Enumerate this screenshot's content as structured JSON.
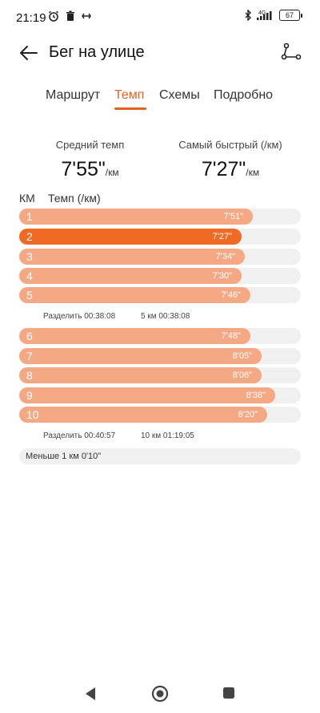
{
  "status_bar": {
    "time": "21:19",
    "left_icons": [
      "alarm-icon",
      "trash-icon",
      "link-icon"
    ],
    "network": "4G",
    "battery": "67"
  },
  "header": {
    "title": "Бег на улице"
  },
  "tabs": [
    {
      "label": "Маршрут",
      "active": false
    },
    {
      "label": "Темп",
      "active": true
    },
    {
      "label": "Схемы",
      "active": false
    },
    {
      "label": "Подробно",
      "active": false
    }
  ],
  "stats": {
    "avg": {
      "label": "Средний темп",
      "value": "7'55\"",
      "unit": "/км"
    },
    "best": {
      "label": "Самый быстрый (/км)",
      "value": "7'27\"",
      "unit": "/км"
    }
  },
  "table_head": {
    "km": "КМ",
    "pace": "Темп (/км)"
  },
  "colors": {
    "accent": "#e8621f",
    "bar": "#f4a984",
    "best_bar": "#f06a26",
    "track": "#f0f0f0"
  },
  "splits": [
    {
      "km": "1",
      "pace": "7'51\"",
      "fill": 0.83
    },
    {
      "km": "2",
      "pace": "7'27\"",
      "fill": 0.79,
      "best": true
    },
    {
      "km": "3",
      "pace": "7'34\"",
      "fill": 0.8
    },
    {
      "km": "4",
      "pace": "7'30\"",
      "fill": 0.79
    },
    {
      "km": "5",
      "pace": "7'46\"",
      "fill": 0.82
    },
    {
      "km": "6",
      "pace": "7'48\"",
      "fill": 0.82
    },
    {
      "km": "7",
      "pace": "8'05\"",
      "fill": 0.86
    },
    {
      "km": "8",
      "pace": "8'06\"",
      "fill": 0.86
    },
    {
      "km": "9",
      "pace": "8'38\"",
      "fill": 0.91
    },
    {
      "km": "10",
      "pace": "8'20\"",
      "fill": 0.88
    }
  ],
  "group_summaries": [
    {
      "split": "Разделить 00:38:08",
      "cumulative": "5 км 00:38:08"
    },
    {
      "split": "Разделить 00:40:57",
      "cumulative": "10 км 01:19:05"
    }
  ],
  "less_than_km": "Меньше 1 км 0'10\""
}
